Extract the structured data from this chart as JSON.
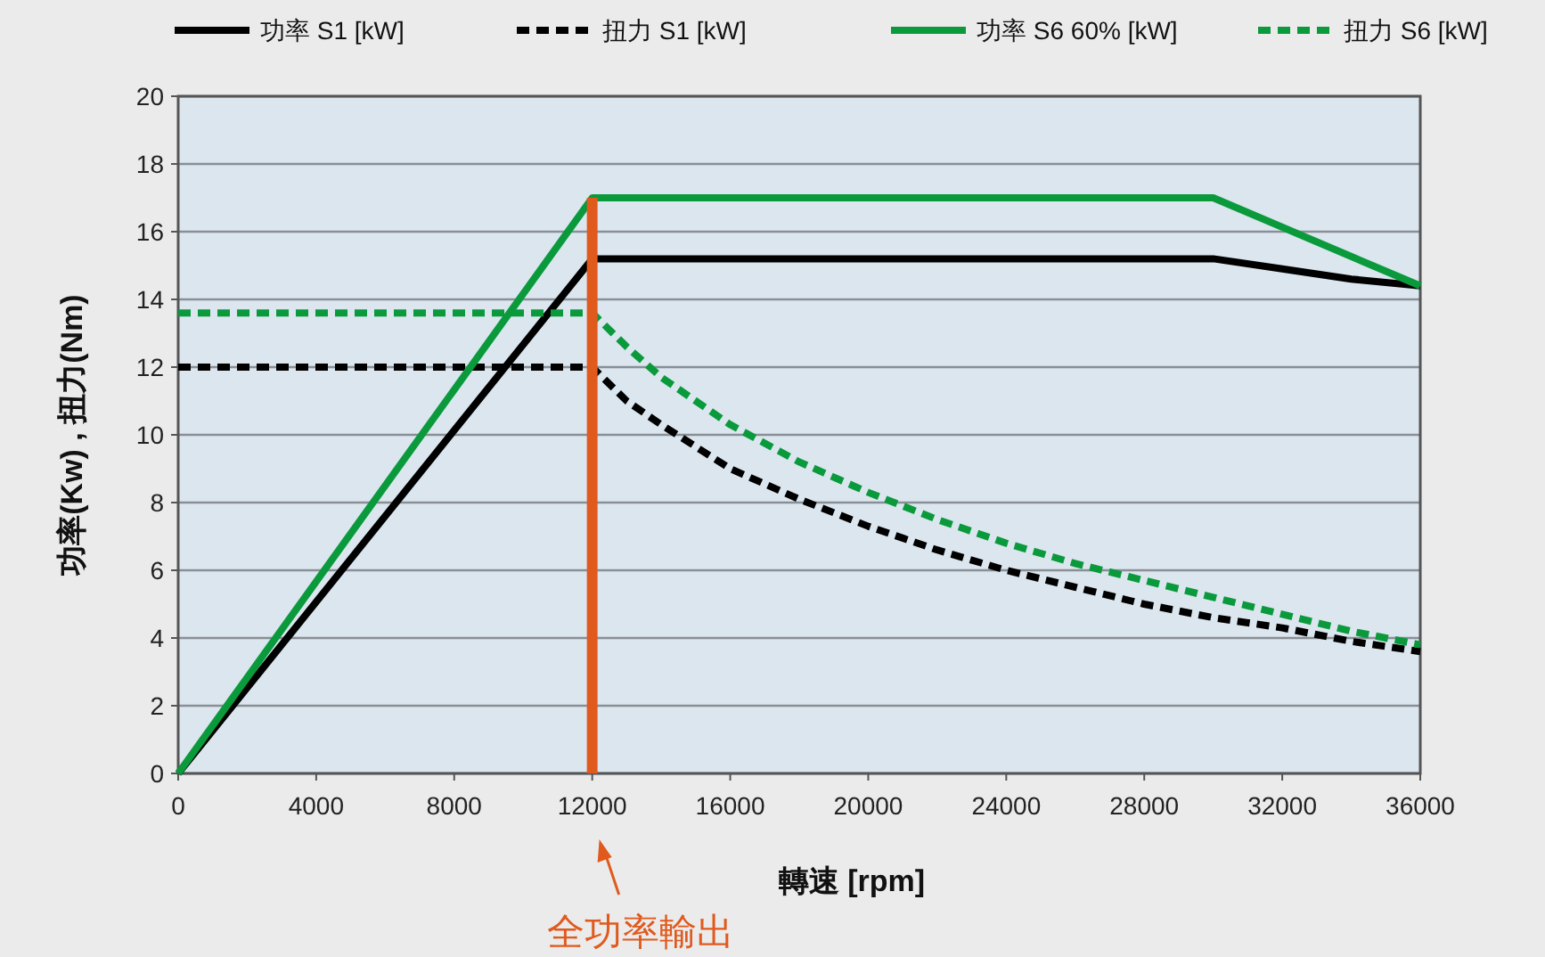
{
  "chart_data": {
    "type": "line",
    "xlabel": "轉速 [rpm]",
    "ylabel": "功率(Kw) , 扭力(Nm)",
    "xlim": [
      0,
      36000
    ],
    "ylim": [
      0,
      20
    ],
    "xticks": [
      0,
      4000,
      8000,
      12000,
      16000,
      20000,
      24000,
      28000,
      32000,
      36000
    ],
    "yticks": [
      0,
      2,
      4,
      6,
      8,
      10,
      12,
      14,
      16,
      18,
      20
    ],
    "grid": "y",
    "legend": "top",
    "series": [
      {
        "name": "功率 S1 [kW]",
        "color": "#000000",
        "line_style": "solid",
        "x": [
          0,
          12000,
          30000,
          32000,
          34000,
          36000
        ],
        "values": [
          0,
          15.2,
          15.2,
          14.9,
          14.6,
          14.4
        ]
      },
      {
        "name": "扭力 S1 [kW]",
        "color": "#000000",
        "line_style": "dashed",
        "x": [
          0,
          12000,
          13000,
          14000,
          16000,
          18000,
          20000,
          22000,
          24000,
          26000,
          28000,
          30000,
          32000,
          34000,
          36000
        ],
        "values": [
          12,
          12,
          11,
          10.3,
          9.0,
          8.1,
          7.3,
          6.6,
          6.0,
          5.5,
          5.0,
          4.6,
          4.3,
          3.9,
          3.6
        ]
      },
      {
        "name": "功率 S6 60% [kW]",
        "color": "#0a9a3c",
        "line_style": "solid",
        "x": [
          0,
          12000,
          30000,
          36000
        ],
        "values": [
          0,
          17,
          17,
          14.4
        ]
      },
      {
        "name": "扭力 S6 [kW]",
        "color": "#0a9a3c",
        "line_style": "dashed",
        "x": [
          0,
          12000,
          13000,
          14000,
          16000,
          18000,
          20000,
          22000,
          24000,
          26000,
          28000,
          30000,
          32000,
          34000,
          36000
        ],
        "values": [
          13.6,
          13.6,
          12.6,
          11.7,
          10.3,
          9.2,
          8.3,
          7.5,
          6.8,
          6.2,
          5.7,
          5.2,
          4.7,
          4.2,
          3.8
        ]
      }
    ],
    "ref_lines": [
      {
        "axis": "x",
        "value": 12000,
        "label": "全功率輸出",
        "color": "#e05a1e"
      }
    ]
  }
}
